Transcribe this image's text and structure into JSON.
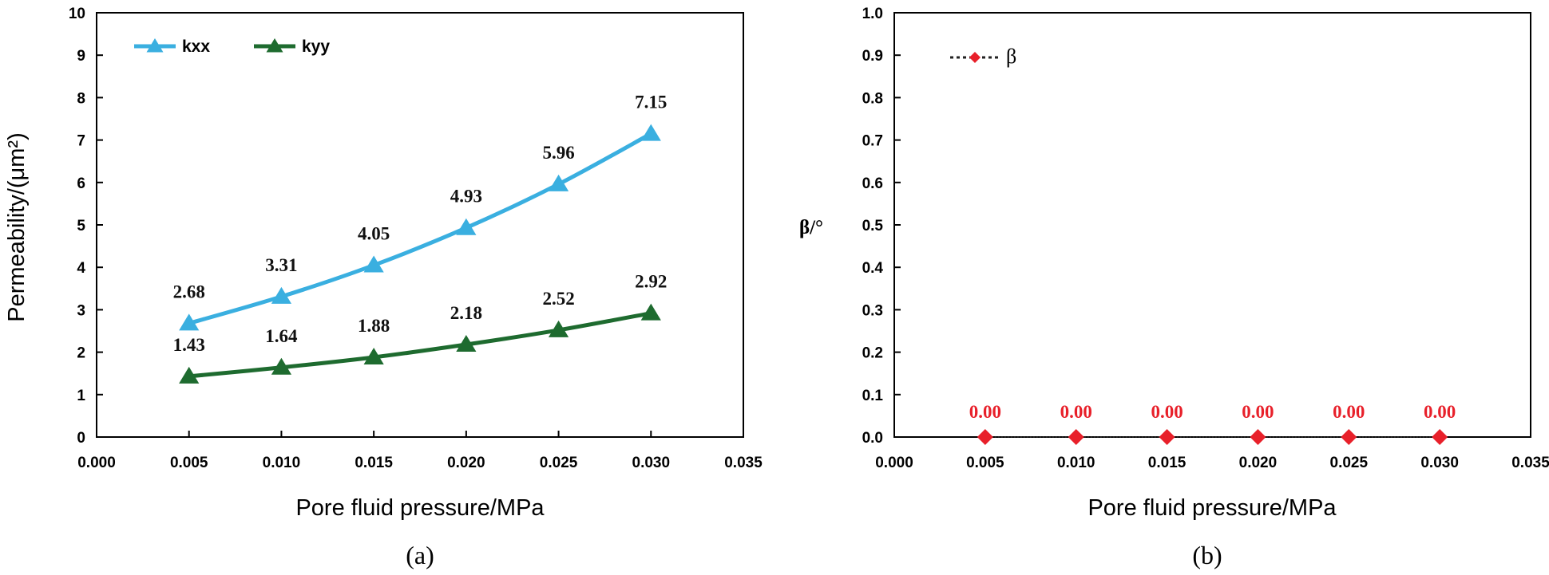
{
  "chart_data": [
    {
      "panel": "a",
      "type": "line",
      "caption": "(a)",
      "xlabel": "Pore fluid pressure/MPa",
      "ylabel": "Permeability/(μm²)",
      "xlim": [
        0.0,
        0.035
      ],
      "ylim": [
        0,
        10
      ],
      "xticks": [
        "0.000",
        "0.005",
        "0.010",
        "0.015",
        "0.020",
        "0.025",
        "0.030",
        "0.035"
      ],
      "yticks": [
        "0",
        "1",
        "2",
        "3",
        "4",
        "5",
        "6",
        "7",
        "8",
        "9",
        "10"
      ],
      "x": [
        0.005,
        0.01,
        0.015,
        0.02,
        0.025,
        0.03
      ],
      "legend_position": "top-left",
      "series": [
        {
          "name": "kxx",
          "color": "#3AAFE0",
          "marker": "triangle",
          "values": [
            2.68,
            3.31,
            4.05,
            4.93,
            5.96,
            7.15
          ],
          "labels": [
            "2.68",
            "3.31",
            "4.05",
            "4.93",
            "5.96",
            "7.15"
          ]
        },
        {
          "name": "kyy",
          "color": "#1E6B2F",
          "marker": "triangle",
          "values": [
            1.43,
            1.64,
            1.88,
            2.18,
            2.52,
            2.92
          ],
          "labels": [
            "1.43",
            "1.64",
            "1.88",
            "2.18",
            "2.52",
            "2.92"
          ]
        }
      ]
    },
    {
      "panel": "b",
      "type": "line",
      "caption": "(b)",
      "xlabel": "Pore fluid pressure/MPa",
      "ylabel": "β/°",
      "xlim": [
        0.0,
        0.035
      ],
      "ylim": [
        0.0,
        1.0
      ],
      "xticks": [
        "0.000",
        "0.005",
        "0.010",
        "0.015",
        "0.020",
        "0.025",
        "0.030",
        "0.035"
      ],
      "yticks": [
        "0.0",
        "0.1",
        "0.2",
        "0.3",
        "0.4",
        "0.5",
        "0.6",
        "0.7",
        "0.8",
        "0.9",
        "1.0"
      ],
      "x": [
        0.005,
        0.01,
        0.015,
        0.02,
        0.025,
        0.03
      ],
      "legend_position": "top-left",
      "series": [
        {
          "name": "β",
          "color": "#E8202A",
          "marker": "diamond",
          "line_style": "dotted",
          "values": [
            0.0,
            0.0,
            0.0,
            0.0,
            0.0,
            0.0
          ],
          "labels": [
            "0.00",
            "0.00",
            "0.00",
            "0.00",
            "0.00",
            "0.00"
          ]
        }
      ]
    }
  ]
}
